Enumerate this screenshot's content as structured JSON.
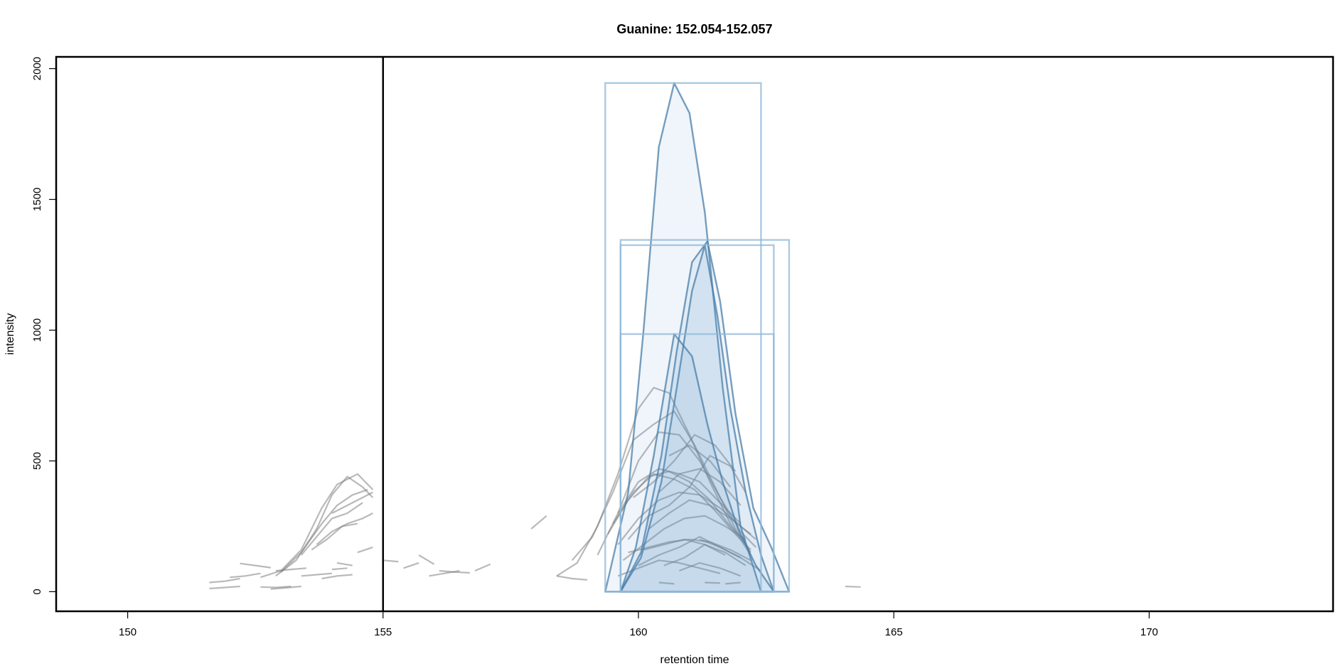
{
  "chart_data": {
    "type": "line",
    "title": "Guanine: 152.054-152.057",
    "xlabel": "retention time",
    "ylabel": "intensity",
    "xlim": [
      148.6,
      173.6
    ],
    "ylim": [
      -75,
      2045
    ],
    "x_ticks": [
      150,
      155,
      160,
      165,
      170
    ],
    "y_ticks": [
      0,
      500,
      1000,
      1500,
      2000
    ],
    "x_tick_labels": [
      "150",
      "155",
      "160",
      "165",
      "170"
    ],
    "y_tick_labels": [
      "0",
      "500",
      "1000",
      "1500",
      "2000"
    ],
    "vertical_line_x": 155,
    "grid": false,
    "colors": {
      "background_traces": "#7f7f7f",
      "peak_fill": "#4f8cc4",
      "peak_stroke": "#4a7ea8",
      "box_stroke": "#8fb8d8",
      "vline": "#000000"
    },
    "peak_boxes": [
      {
        "rtmin": 159.35,
        "rtmax": 162.4,
        "maxo": 1945
      },
      {
        "rtmin": 159.65,
        "rtmax": 162.95,
        "maxo": 1345
      },
      {
        "rtmin": 159.65,
        "rtmax": 162.65,
        "maxo": 1325
      },
      {
        "rtmin": 159.65,
        "rtmax": 162.65,
        "maxo": 985
      }
    ],
    "peaks": [
      {
        "x": [
          159.35,
          159.8,
          160.1,
          160.4,
          160.7,
          161.0,
          161.3,
          161.65,
          162.0,
          162.4
        ],
        "y": [
          0,
          380,
          1000,
          1700,
          1945,
          1830,
          1450,
          780,
          250,
          0
        ]
      },
      {
        "x": [
          159.65,
          160.05,
          160.45,
          160.75,
          161.05,
          161.35,
          161.6,
          161.9,
          162.25,
          162.6,
          162.95
        ],
        "y": [
          0,
          150,
          520,
          920,
          1260,
          1340,
          1110,
          680,
          320,
          170,
          0
        ]
      },
      {
        "x": [
          159.65,
          160.05,
          160.45,
          160.75,
          161.05,
          161.3,
          161.55,
          161.8,
          162.1,
          162.4,
          162.65
        ],
        "y": [
          0,
          130,
          420,
          780,
          1150,
          1325,
          1050,
          700,
          380,
          140,
          0
        ]
      },
      {
        "x": [
          159.65,
          159.95,
          160.3,
          160.7,
          161.05,
          161.35,
          161.65,
          161.95,
          162.3,
          162.65
        ],
        "y": [
          0,
          170,
          520,
          985,
          900,
          640,
          420,
          240,
          100,
          0
        ]
      }
    ],
    "background_traces": [
      {
        "x": [
          151.6,
          151.9,
          152.2
        ],
        "y": [
          12,
          16,
          20
        ]
      },
      {
        "x": [
          151.6,
          151.9,
          152.2
        ],
        "y": [
          35,
          40,
          50
        ]
      },
      {
        "x": [
          152.0,
          152.3,
          152.6
        ],
        "y": [
          55,
          60,
          70
        ]
      },
      {
        "x": [
          152.2,
          152.5,
          152.8
        ],
        "y": [
          108,
          100,
          92
        ]
      },
      {
        "x": [
          152.6,
          152.9,
          153.2
        ],
        "y": [
          18,
          16,
          20
        ]
      },
      {
        "x": [
          152.8,
          153.1,
          153.4
        ],
        "y": [
          10,
          15,
          20
        ]
      },
      {
        "x": [
          152.9,
          153.2,
          153.5
        ],
        "y": [
          80,
          85,
          90
        ]
      },
      {
        "x": [
          153.4,
          153.7,
          154.0
        ],
        "y": [
          60,
          65,
          70
        ]
      },
      {
        "x": [
          153.8,
          154.1,
          154.4
        ],
        "y": [
          50,
          60,
          65
        ]
      },
      {
        "x": [
          154.1,
          154.4
        ],
        "y": [
          110,
          100
        ]
      },
      {
        "x": [
          154.0,
          154.3
        ],
        "y": [
          85,
          90
        ]
      },
      {
        "x": [
          154.5,
          154.8
        ],
        "y": [
          150,
          170
        ]
      },
      {
        "x": [
          152.6,
          153.0,
          153.4,
          153.8,
          154.1,
          154.5,
          154.8
        ],
        "y": [
          55,
          80,
          160,
          320,
          410,
          450,
          390
        ]
      },
      {
        "x": [
          152.9,
          153.3,
          153.7,
          154.0,
          154.3,
          154.6,
          154.8
        ],
        "y": [
          60,
          120,
          240,
          370,
          440,
          400,
          360
        ]
      },
      {
        "x": [
          153.0,
          153.4,
          153.8,
          154.1,
          154.4,
          154.7
        ],
        "y": [
          75,
          150,
          260,
          330,
          370,
          390
        ]
      },
      {
        "x": [
          153.4,
          153.7,
          154.0,
          154.3,
          154.6
        ],
        "y": [
          140,
          210,
          280,
          300,
          340
        ]
      },
      {
        "x": [
          153.7,
          154.0,
          154.3,
          154.6,
          154.8
        ],
        "y": [
          180,
          230,
          260,
          280,
          300
        ]
      },
      {
        "x": [
          153.6,
          153.9,
          154.2,
          154.5
        ],
        "y": [
          160,
          200,
          250,
          260
        ]
      },
      {
        "x": [
          154.0,
          154.3,
          154.6,
          154.8
        ],
        "y": [
          300,
          330,
          360,
          380
        ]
      },
      {
        "x": [
          155.0,
          155.3
        ],
        "y": [
          120,
          115
        ]
      },
      {
        "x": [
          155.4,
          155.7
        ],
        "y": [
          90,
          110
        ]
      },
      {
        "x": [
          155.7,
          156.0
        ],
        "y": [
          140,
          105
        ]
      },
      {
        "x": [
          155.9,
          156.2,
          156.5
        ],
        "y": [
          60,
          70,
          80
        ]
      },
      {
        "x": [
          156.1,
          156.4,
          156.7
        ],
        "y": [
          80,
          75,
          72
        ]
      },
      {
        "x": [
          156.8,
          157.1
        ],
        "y": [
          80,
          105
        ]
      },
      {
        "x": [
          157.9,
          158.2
        ],
        "y": [
          240,
          290
        ]
      },
      {
        "x": [
          158.4,
          158.7,
          159.0
        ],
        "y": [
          60,
          50,
          45
        ]
      },
      {
        "x": [
          158.4,
          158.8,
          159.2,
          159.6,
          160.0,
          160.3,
          160.6,
          161.0,
          161.4,
          161.8,
          162.2
        ],
        "y": [
          60,
          110,
          250,
          450,
          700,
          780,
          760,
          600,
          420,
          260,
          140
        ]
      },
      {
        "x": [
          158.7,
          159.1,
          159.5,
          159.9,
          160.3,
          160.7,
          161.1,
          161.5,
          161.9,
          162.2
        ],
        "y": [
          120,
          210,
          380,
          580,
          640,
          690,
          560,
          400,
          240,
          150
        ]
      },
      {
        "x": [
          159.2,
          159.6,
          160.0,
          160.4,
          160.8,
          161.2,
          161.6,
          162.0,
          162.3
        ],
        "y": [
          140,
          300,
          500,
          610,
          600,
          500,
          360,
          230,
          170
        ]
      },
      {
        "x": [
          159.4,
          159.8,
          160.2,
          160.6,
          161.0,
          161.4,
          161.8,
          162.1
        ],
        "y": [
          220,
          350,
          440,
          460,
          420,
          350,
          250,
          190
        ]
      },
      {
        "x": [
          159.5,
          159.9,
          160.3,
          160.7,
          161.1,
          161.5,
          161.9,
          162.2
        ],
        "y": [
          260,
          380,
          450,
          430,
          390,
          310,
          220,
          160
        ]
      },
      {
        "x": [
          159.6,
          160.0,
          160.4,
          160.8,
          161.2,
          161.6,
          162.0
        ],
        "y": [
          300,
          420,
          470,
          450,
          420,
          340,
          260
        ]
      },
      {
        "x": [
          159.6,
          160.0,
          160.4,
          160.8,
          161.2,
          161.6,
          162.0,
          162.3
        ],
        "y": [
          180,
          280,
          350,
          380,
          370,
          320,
          250,
          200
        ]
      },
      {
        "x": [
          159.8,
          160.2,
          160.6,
          161.0,
          161.4,
          161.8,
          162.1
        ],
        "y": [
          200,
          290,
          330,
          400,
          520,
          480,
          380
        ]
      },
      {
        "x": [
          159.9,
          160.3,
          160.7,
          161.1,
          161.5,
          161.9
        ],
        "y": [
          360,
          420,
          500,
          600,
          560,
          460
        ]
      },
      {
        "x": [
          159.7,
          160.1,
          160.5,
          160.9,
          161.3,
          161.7,
          162.1
        ],
        "y": [
          120,
          180,
          240,
          280,
          290,
          250,
          200
        ]
      },
      {
        "x": [
          159.8,
          160.2,
          160.6,
          161.0,
          161.4,
          161.8,
          162.2
        ],
        "y": [
          150,
          170,
          190,
          200,
          190,
          160,
          120
        ]
      },
      {
        "x": [
          160.0,
          160.4,
          160.8,
          161.2,
          161.6,
          162.0
        ],
        "y": [
          100,
          140,
          170,
          210,
          170,
          130
        ]
      },
      {
        "x": [
          160.1,
          160.5,
          160.9,
          161.3,
          161.7
        ],
        "y": [
          160,
          180,
          200,
          180,
          140
        ]
      },
      {
        "x": [
          160.5,
          160.9,
          161.3,
          161.7,
          162.1
        ],
        "y": [
          100,
          130,
          180,
          150,
          100
        ]
      },
      {
        "x": [
          159.6,
          160.0,
          160.4,
          160.8,
          161.2,
          161.6
        ],
        "y": [
          60,
          90,
          120,
          110,
          90,
          70
        ]
      },
      {
        "x": [
          160.2,
          160.6,
          161.0,
          161.4,
          161.8,
          162.2
        ],
        "y": [
          240,
          300,
          350,
          330,
          280,
          220
        ]
      },
      {
        "x": [
          160.4,
          160.8,
          161.2,
          161.6,
          162.0
        ],
        "y": [
          380,
          450,
          470,
          420,
          330
        ]
      },
      {
        "x": [
          160.6,
          161.0,
          161.4,
          161.8
        ],
        "y": [
          520,
          560,
          500,
          400
        ]
      },
      {
        "x": [
          160.8,
          161.2,
          161.6,
          162.0
        ],
        "y": [
          80,
          110,
          90,
          60
        ]
      },
      {
        "x": [
          161.2,
          161.6,
          162.0,
          162.4
        ],
        "y": [
          200,
          170,
          130,
          80
        ]
      },
      {
        "x": [
          160.4,
          160.7
        ],
        "y": [
          35,
          30
        ]
      },
      {
        "x": [
          161.3,
          161.6
        ],
        "y": [
          35,
          33
        ]
      },
      {
        "x": [
          161.7,
          162.0
        ],
        "y": [
          30,
          35
        ]
      },
      {
        "x": [
          164.05,
          164.35
        ],
        "y": [
          20,
          18
        ]
      }
    ]
  }
}
